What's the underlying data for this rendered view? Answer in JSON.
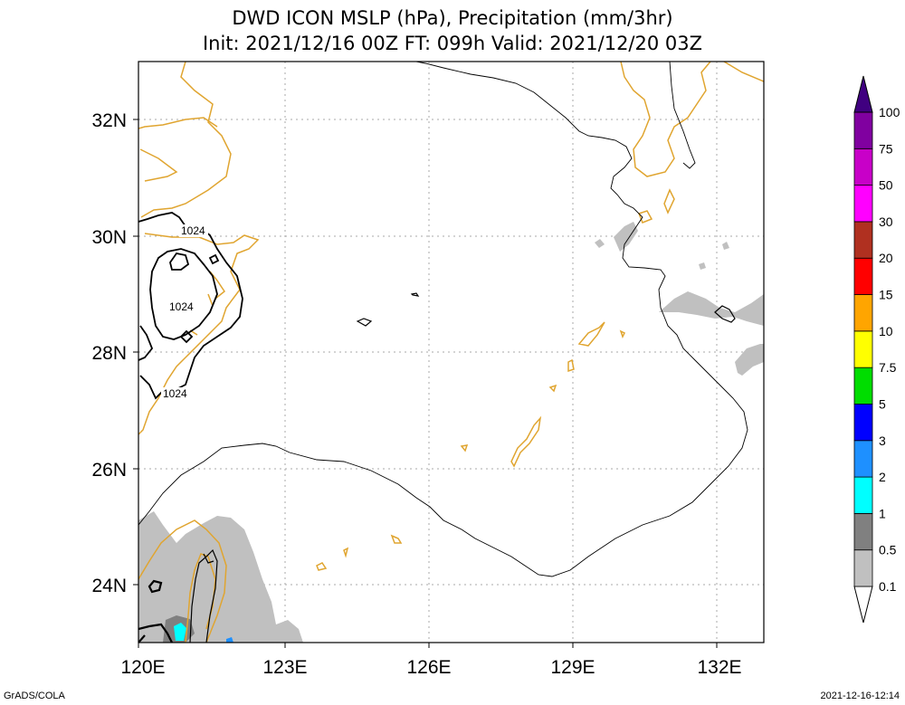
{
  "title": {
    "line1": "DWD ICON MSLP (hPa), Precipitation (mm/3hr)",
    "line2": "Init: 2021/12/16 00Z  FT: 099h  Valid: 2021/12/20 03Z"
  },
  "map": {
    "lon_range": [
      120,
      133
    ],
    "lat_range": [
      23,
      33
    ],
    "lon_ticks": [
      "120E",
      "123E",
      "126E",
      "129E",
      "132E"
    ],
    "lat_ticks": [
      "24N",
      "26N",
      "28N",
      "30N",
      "32N"
    ],
    "contour_labels": [
      "1024",
      "1024",
      "1024"
    ],
    "colors": {
      "coast": "#e0a530",
      "isobar": "#000000",
      "grid": "#aaaaaa"
    }
  },
  "colorbar": {
    "labels": [
      "0.1",
      "0.5",
      "1",
      "2",
      "3",
      "5",
      "7.5",
      "10",
      "15",
      "20",
      "30",
      "50",
      "75",
      "100"
    ],
    "colors": [
      "#ffffff",
      "#c0c0c0",
      "#808080",
      "#00ffff",
      "#1e90ff",
      "#0000ff",
      "#00dd00",
      "#ffff00",
      "#ffa500",
      "#ff0000",
      "#b03020",
      "#ff00ff",
      "#c800c8",
      "#8000a0",
      "#400080"
    ]
  },
  "footer": {
    "left": "GrADS/COLA",
    "right": "2021-12-16-12:14"
  }
}
